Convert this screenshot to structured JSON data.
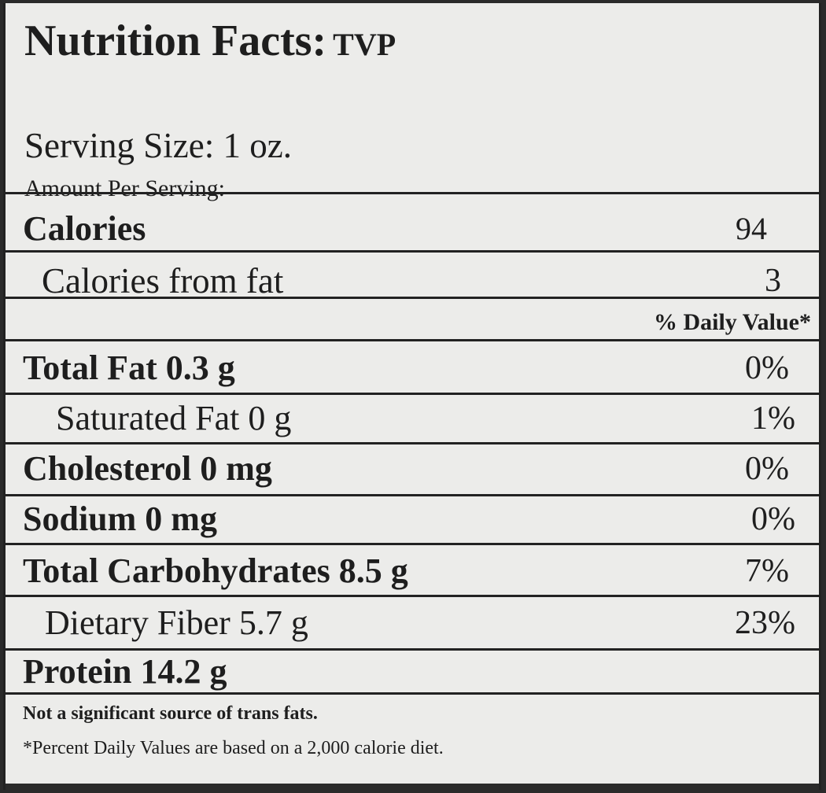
{
  "header": {
    "title": "Nutrition Facts:",
    "product": "TVP",
    "serving_size": "Serving Size: 1 oz.",
    "amount_per_serving": "Amount Per Serving:"
  },
  "calories": {
    "label": "Calories",
    "value": "94"
  },
  "calories_from_fat": {
    "label": "Calories from fat",
    "value": "3"
  },
  "daily_value_header": "% Daily Value*",
  "nutrients": [
    {
      "label": "Total Fat  0.3 g",
      "dv": "0%"
    },
    {
      "label": "Saturated Fat 0 g",
      "dv": "1%"
    },
    {
      "label": "Cholesterol 0 mg",
      "dv": "0%"
    },
    {
      "label": "Sodium 0 mg",
      "dv": "0%"
    },
    {
      "label": "Total Carbohydrates 8.5  g",
      "dv": "7%"
    },
    {
      "label": "Dietary Fiber 5.7 g",
      "dv": "23%"
    },
    {
      "label": "Protein 14.2  g",
      "dv": ""
    }
  ],
  "footnotes": {
    "trans_fat": "Not a significant source of trans fats.",
    "daily_values": "*Percent Daily Values are based on a 2,000 calorie diet."
  }
}
